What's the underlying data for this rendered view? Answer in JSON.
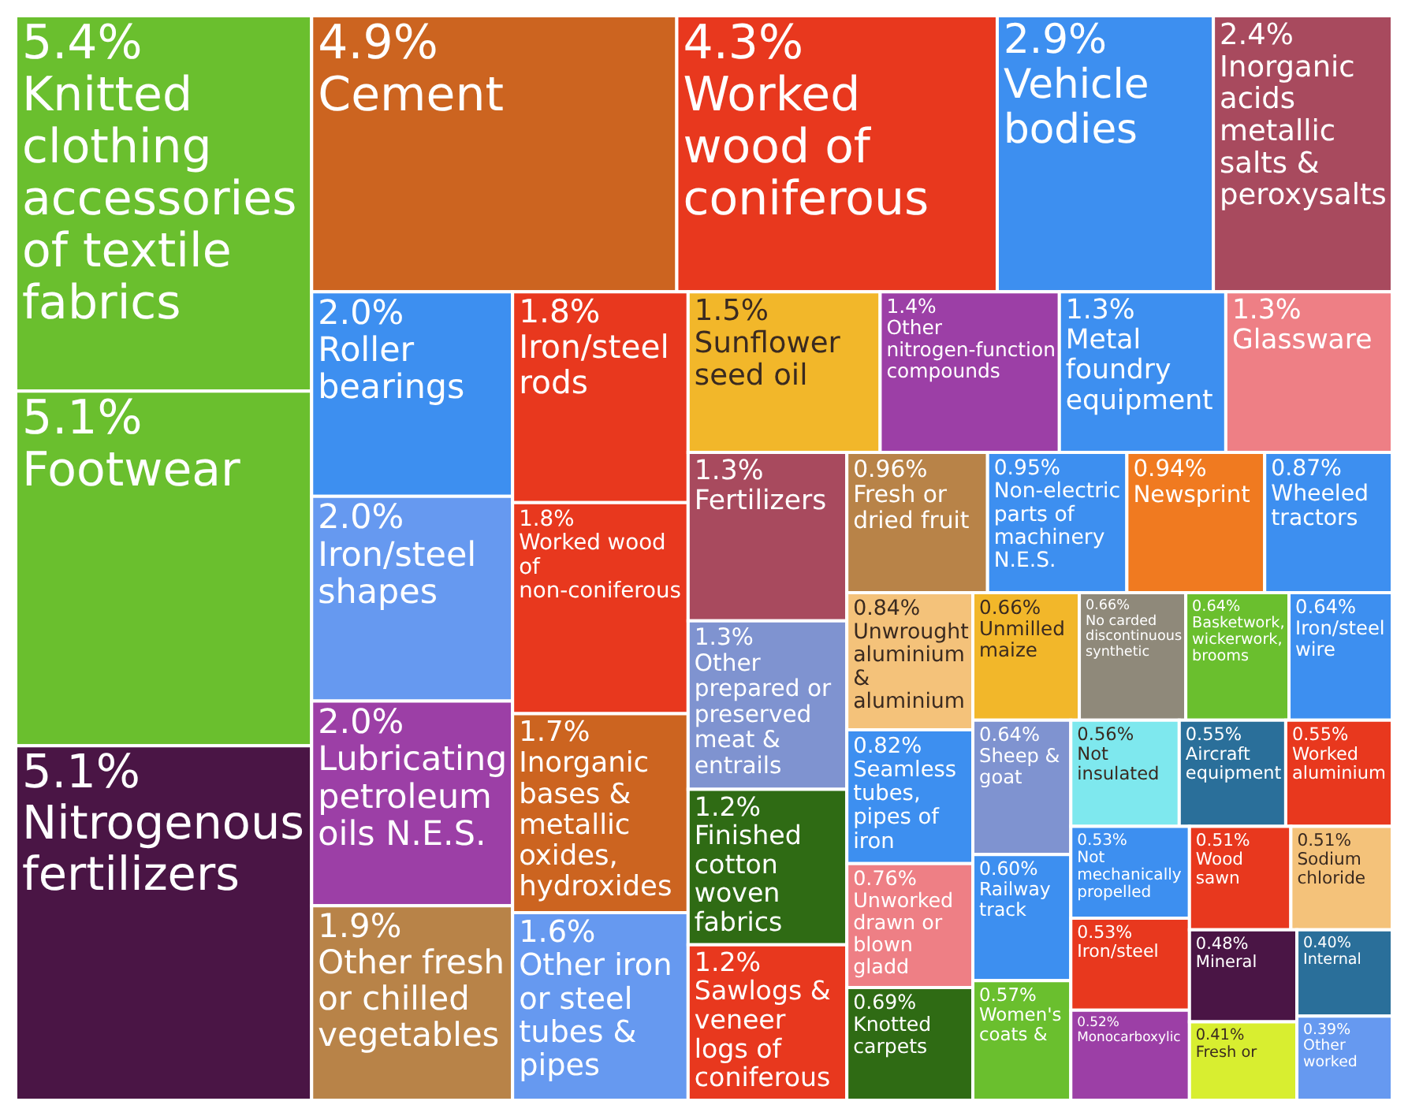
{
  "chart_data": {
    "type": "other",
    "categories": [
      "Knitted clothing accessories of textile fabrics",
      "Footwear",
      "Nitrogenous fertilizers",
      "Cement",
      "Worked wood of coniferous",
      "Vehicle bodies",
      "Inorganic acids metallic salts & peroxysalts",
      "Roller bearings",
      "Iron/steel shapes",
      "Lubricating petroleum oils N.E.S.",
      "Other fresh or chilled vegetables",
      "Iron/steel rods",
      "Worked wood of non-coniferous",
      "Inorganic bases & metallic oxides, hydroxides",
      "Other iron or steel tubes & pipes",
      "Sunflower seed oil",
      "Other nitrogen-function compounds",
      "Metal foundry equipment",
      "Glassware",
      "Fertilizers",
      "Other prepared or preserved meat & entrails",
      "Finished cotton woven fabrics",
      "Sawlogs & veneer logs of coniferous",
      "Fresh or dried fruit",
      "Non-electric parts of machinery N.E.S.",
      "Newsprint",
      "Wheeled tractors",
      "Unwrought aluminium & aluminium",
      "Seamless tubes, pipes of iron",
      "Unworked drawn or blown gladd",
      "Knotted carpets",
      "Unmilled maize",
      "No carded discontinuous synthetic",
      "Basketwork, wickerwork, brooms",
      "Iron/steel wire",
      "Sheep & goat",
      "Railway track",
      "Women's coats &",
      "Not insulated",
      "Aircraft equipment",
      "Worked aluminium",
      "Not mechanically propelled",
      "Iron/steel",
      "Monocarboxylic",
      "Wood sawn",
      "Sodium chloride",
      "Mineral",
      "Fresh or",
      "Internal",
      "Other worked"
    ],
    "values": [
      5.4,
      5.1,
      5.1,
      4.9,
      4.3,
      2.9,
      2.4,
      2.0,
      2.0,
      2.0,
      1.9,
      1.8,
      1.8,
      1.7,
      1.6,
      1.5,
      1.4,
      1.3,
      1.3,
      1.3,
      1.3,
      1.2,
      1.2,
      0.96,
      0.95,
      0.94,
      0.87,
      0.84,
      0.82,
      0.76,
      0.69,
      0.66,
      0.66,
      0.64,
      0.64,
      0.64,
      0.6,
      0.57,
      0.56,
      0.55,
      0.55,
      0.53,
      0.53,
      0.52,
      0.51,
      0.51,
      0.48,
      0.41,
      0.4,
      0.39
    ],
    "value_labels": [
      "5.4%",
      "5.1%",
      "5.1%",
      "4.9%",
      "4.3%",
      "2.9%",
      "2.4%",
      "2.0%",
      "2.0%",
      "2.0%",
      "1.9%",
      "1.8%",
      "1.8%",
      "1.7%",
      "1.6%",
      "1.5%",
      "1.4%",
      "1.3%",
      "1.3%",
      "1.3%",
      "1.3%",
      "1.2%",
      "1.2%",
      "0.96%",
      "0.95%",
      "0.94%",
      "0.87%",
      "0.84%",
      "0.82%",
      "0.76%",
      "0.69%",
      "0.66%",
      "0.66%",
      "0.64%",
      "0.64%",
      "0.64%",
      "0.60%",
      "0.57%",
      "0.56%",
      "0.55%",
      "0.55%",
      "0.53%",
      "0.53%",
      "0.52%",
      "0.51%",
      "0.51%",
      "0.48%",
      "0.41%",
      "0.40%",
      "0.39%"
    ],
    "colors": [
      "#6abf2e",
      "#6abf2e",
      "#4a1545",
      "#cc6420",
      "#e8381e",
      "#3d8ff0",
      "#a84a5e",
      "#3d8ff0",
      "#6699f0",
      "#9c3fa6",
      "#b88348",
      "#e8381e",
      "#e8381e",
      "#cc6420",
      "#6699f0",
      "#f2b72a",
      "#9c3fa6",
      "#3d8ff0",
      "#ee7f85",
      "#a84a5e",
      "#7f93d0",
      "#2f6b14",
      "#e8381e",
      "#b88348",
      "#3d8ff0",
      "#f07a20",
      "#3d8ff0",
      "#f4c27a",
      "#3d8ff0",
      "#ee7f85",
      "#2f6b14",
      "#f2b72a",
      "#8f897a",
      "#6abf2e",
      "#3d8ff0",
      "#7f93d0",
      "#3d8ff0",
      "#6abf2e",
      "#7ee8ee",
      "#2a6f9a",
      "#e8381e",
      "#3d8ff0",
      "#e8381e",
      "#9c3fa6",
      "#e8381e",
      "#f4c27a",
      "#4a1545",
      "#d8ee30",
      "#2a6f9a",
      "#6699f0"
    ]
  }
}
